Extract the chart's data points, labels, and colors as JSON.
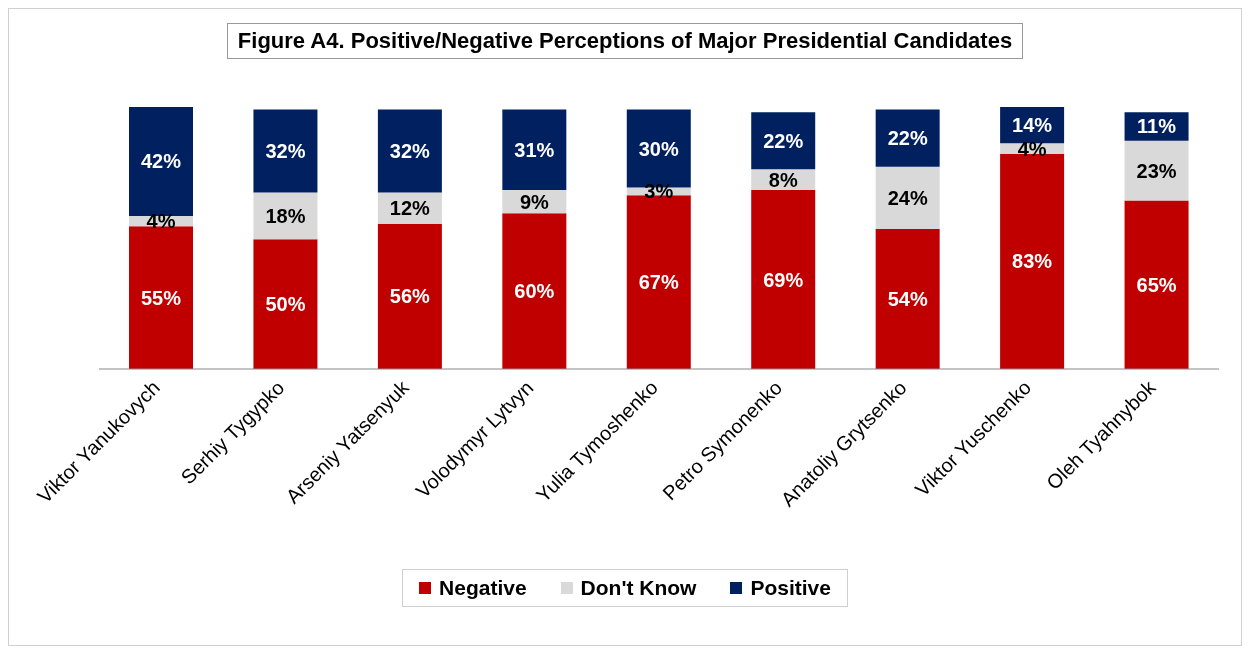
{
  "chart_data": {
    "type": "bar",
    "title": "Figure A4. Positive/Negative Perceptions of Major Presidential Candidates",
    "categories": [
      "Viktor Yanukovych",
      "Serhiy Tygypko",
      "Arseniy Yatsenyuk",
      "Volodymyr Lytvyn",
      "Yulia Tymoshenko",
      "Petro Symonenko",
      "Anatoliy Grytsenko",
      "Viktor Yuschenko",
      "Oleh Tyahnybok"
    ],
    "stacked": true,
    "legend": "bottom",
    "grid": false,
    "series": [
      {
        "name": "Negative",
        "color": "#c00000",
        "values": [
          55,
          50,
          56,
          60,
          67,
          69,
          54,
          83,
          65
        ],
        "value_labels": [
          "55%",
          "50%",
          "56%",
          "60%",
          "67%",
          "69%",
          "54%",
          "83%",
          "65%"
        ]
      },
      {
        "name": "Don't Know",
        "color": "#d9d9d9",
        "values": [
          4,
          18,
          12,
          9,
          3,
          8,
          24,
          4,
          23
        ],
        "value_labels": [
          "4%",
          "18%",
          "12%",
          "9%",
          "3%",
          "8%",
          "24%",
          "4%",
          "23%"
        ]
      },
      {
        "name": "Positive",
        "color": "#002060",
        "values": [
          42,
          32,
          32,
          31,
          30,
          22,
          22,
          14,
          11
        ],
        "value_labels": [
          "42%",
          "32%",
          "32%",
          "31%",
          "30%",
          "22%",
          "22%",
          "14%",
          "11%"
        ]
      }
    ]
  }
}
